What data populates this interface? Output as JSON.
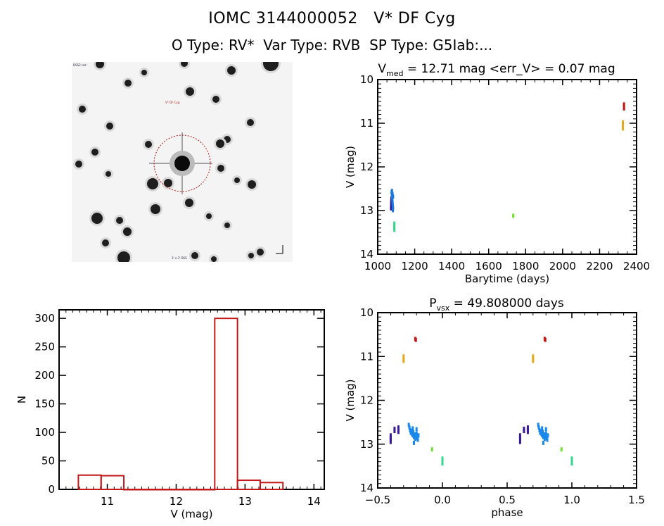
{
  "header": {
    "title": "IOMC 3144000052   V* DF Cyg",
    "subtitle": "O Type: RV*  Var Type: RVB  SP Type: G5Iab:..."
  },
  "image_panel": {
    "target_label": "V* DF Cyg",
    "aperture_color": "#b01818",
    "corner_top_left": "DSS2 red",
    "corner_bottom_center": "3' x 3' DSS",
    "compass": "N E"
  },
  "chart_data": [
    {
      "id": "lightcurve",
      "type": "scatter",
      "title": "V_med = 12.71 mag <err_V> = 0.07 mag",
      "title_main": "V",
      "title_sub": "med",
      "title_rest": " = 12.71 mag <err_V> = 0.07 mag",
      "xlabel": "Barytime (days)",
      "ylabel": "V (mag)",
      "xlim": [
        1000,
        2400
      ],
      "ylim": [
        14,
        10
      ],
      "y_inverted": true,
      "xticks": [
        1000,
        1200,
        1400,
        1600,
        1800,
        2000,
        2200,
        2400
      ],
      "yticks": [
        10,
        11,
        12,
        13,
        14
      ],
      "series": [
        {
          "name": "group-purple",
          "color": "#3a1a9a",
          "points": [
            [
              1072,
              12.95
            ],
            [
              1072,
              12.9
            ],
            [
              1073,
              12.85
            ],
            [
              1073,
              12.8
            ],
            [
              1074,
              12.75
            ],
            [
              1074,
              12.72
            ]
          ]
        },
        {
          "name": "group-blue",
          "color": "#1a78e0",
          "points": [
            [
              1075,
              12.58
            ],
            [
              1076,
              12.6
            ],
            [
              1077,
              12.65
            ],
            [
              1078,
              12.7
            ],
            [
              1079,
              12.75
            ],
            [
              1080,
              12.8
            ],
            [
              1081,
              12.85
            ],
            [
              1082,
              12.9
            ],
            [
              1083,
              12.95
            ],
            [
              1082,
              12.99
            ],
            [
              1077,
              12.55
            ],
            [
              1080,
              12.62
            ],
            [
              1083,
              12.68
            ]
          ]
        },
        {
          "name": "group-teal",
          "color": "#30d88a",
          "points": [
            [
              1090,
              13.3
            ],
            [
              1090,
              13.35
            ],
            [
              1090,
              13.4
            ],
            [
              1090,
              13.44
            ]
          ]
        },
        {
          "name": "group-green",
          "color": "#70e030",
          "points": [
            [
              1733,
              13.12
            ]
          ]
        },
        {
          "name": "group-orange",
          "color": "#e8a820",
          "points": [
            [
              2326,
              10.98
            ],
            [
              2326,
              11.03
            ],
            [
              2326,
              11.08
            ],
            [
              2326,
              11.12
            ]
          ]
        },
        {
          "name": "group-red",
          "color": "#c41818",
          "points": [
            [
              2332,
              10.57
            ],
            [
              2332,
              10.62
            ],
            [
              2332,
              10.66
            ]
          ]
        }
      ]
    },
    {
      "id": "histogram",
      "type": "bar",
      "title": "",
      "xlabel": "V (mag)",
      "ylabel": "N",
      "xlim": [
        10.3,
        14.15
      ],
      "ylim": [
        0,
        315
      ],
      "xticks": [
        11,
        12,
        13,
        14
      ],
      "yticks": [
        0,
        50,
        100,
        150,
        200,
        250,
        300
      ],
      "bar_color": "#c41818",
      "bin_edges": [
        10.58,
        10.91,
        11.24,
        11.57,
        11.9,
        12.23,
        12.56,
        12.89,
        13.22,
        13.55
      ],
      "values": [
        25,
        24,
        0,
        0,
        0,
        0,
        300,
        16,
        12
      ]
    },
    {
      "id": "phased",
      "type": "scatter",
      "title": "P_vsx = 49.808000 days",
      "title_main": "P",
      "title_sub": "vsx",
      "title_rest": " = 49.808000 days",
      "xlabel": "phase",
      "ylabel": "V (mag)",
      "xlim": [
        -0.5,
        1.5
      ],
      "ylim": [
        14,
        10
      ],
      "y_inverted": true,
      "xticks": [
        -0.5,
        0.0,
        0.5,
        1.0,
        1.5
      ],
      "xtick_labels": [
        "−0.5",
        "0.0",
        "0.5",
        "1.0",
        "1.5"
      ],
      "yticks": [
        10,
        11,
        12,
        13,
        14
      ],
      "series": [
        {
          "name": "group-purple",
          "color": "#3a1a9a",
          "points": [
            [
              0.6,
              12.8
            ],
            [
              0.6,
              12.85
            ],
            [
              0.6,
              12.9
            ],
            [
              0.6,
              12.95
            ],
            [
              0.63,
              12.65
            ],
            [
              0.63,
              12.7
            ],
            [
              0.66,
              12.62
            ],
            [
              0.66,
              12.67
            ],
            [
              0.66,
              12.72
            ]
          ]
        },
        {
          "name": "group-blue",
          "color": "#1a88ea",
          "points": [
            [
              0.74,
              12.56
            ],
            [
              0.745,
              12.62
            ],
            [
              0.75,
              12.68
            ],
            [
              0.755,
              12.74
            ],
            [
              0.76,
              12.7
            ],
            [
              0.765,
              12.76
            ],
            [
              0.77,
              12.8
            ],
            [
              0.775,
              12.72
            ],
            [
              0.78,
              12.84
            ],
            [
              0.785,
              12.78
            ],
            [
              0.79,
              12.88
            ],
            [
              0.795,
              12.82
            ],
            [
              0.8,
              12.76
            ],
            [
              0.805,
              12.86
            ],
            [
              0.81,
              12.9
            ],
            [
              0.815,
              12.8
            ],
            [
              0.78,
              12.97
            ],
            [
              0.77,
              12.64
            ],
            [
              0.8,
              12.66
            ]
          ]
        },
        {
          "name": "group-green",
          "color": "#70e030",
          "points": [
            [
              0.92,
              13.12
            ]
          ]
        },
        {
          "name": "group-teal",
          "color": "#30d88a",
          "points": [
            [
              1.0,
              13.33
            ],
            [
              1.0,
              13.37
            ],
            [
              1.0,
              13.41
            ],
            [
              1.0,
              13.44
            ]
          ]
        },
        {
          "name": "group-orange",
          "color": "#e8a820",
          "points": [
            [
              0.7,
              11.0
            ],
            [
              0.7,
              11.05
            ],
            [
              0.7,
              11.1
            ]
          ]
        },
        {
          "name": "group-red",
          "color": "#c41818",
          "points": [
            [
              0.79,
              10.6
            ],
            [
              0.795,
              10.62
            ]
          ]
        }
      ],
      "repeat_offset": -1.0
    }
  ]
}
